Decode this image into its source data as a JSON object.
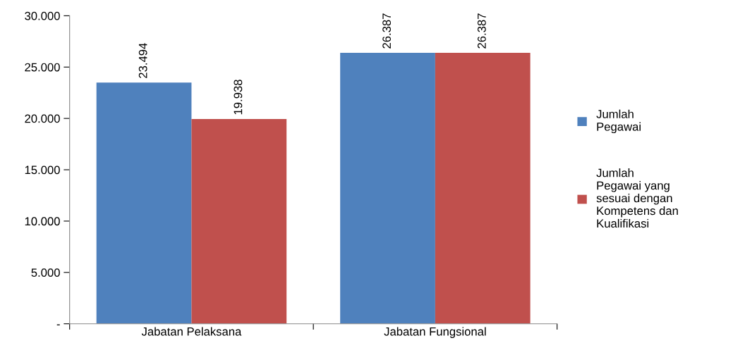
{
  "chart_data": {
    "type": "bar",
    "categories": [
      "Jabatan Pelaksana",
      "Jabatan Fungsional"
    ],
    "series": [
      {
        "name": "Jumlah\nPegawai",
        "color": "#4f81bd",
        "values": [
          23494,
          26387
        ],
        "value_labels": [
          "23.494",
          "26.387"
        ]
      },
      {
        "name": "Jumlah\nPegawai yang\nsesuai dengan\nKompetens dan\nKualifikasi",
        "color": "#c0504d",
        "values": [
          19938,
          26387
        ],
        "value_labels": [
          "19.938",
          "26.387"
        ]
      }
    ],
    "ylim": [
      0,
      30000
    ],
    "yticks": [
      {
        "value": 0,
        "label": "-"
      },
      {
        "value": 5000,
        "label": "5.000"
      },
      {
        "value": 10000,
        "label": "10.000"
      },
      {
        "value": 15000,
        "label": "15.000"
      },
      {
        "value": 20000,
        "label": "20.000"
      },
      {
        "value": 25000,
        "label": "25.000"
      },
      {
        "value": 30000,
        "label": "30.000"
      }
    ],
    "legend": "right",
    "grid": false
  }
}
